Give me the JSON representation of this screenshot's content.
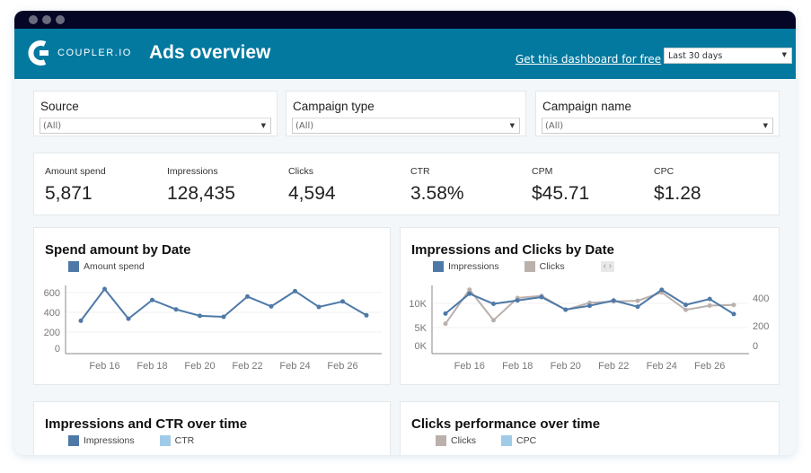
{
  "header": {
    "logo_text": "COUPLER.IO",
    "title": "Ads overview",
    "link": "Get this dashboard for free",
    "date_range": "Last 30 days"
  },
  "filters": [
    {
      "label": "Source",
      "value": "(All)"
    },
    {
      "label": "Campaign type",
      "value": "(All)"
    },
    {
      "label": "Campaign name",
      "value": "(All)"
    }
  ],
  "kpis": [
    {
      "label": "Amount spend",
      "value": "5,871"
    },
    {
      "label": "Impressions",
      "value": "128,435"
    },
    {
      "label": "Clicks",
      "value": "4,594"
    },
    {
      "label": "CTR",
      "value": "3.58%"
    },
    {
      "label": "CPM",
      "value": "$45.71"
    },
    {
      "label": "CPC",
      "value": "$1.28"
    }
  ],
  "colors": {
    "header": "#0379a0",
    "titlebar": "#050525",
    "blue": "#4e79a7",
    "gray": "#bab0ac",
    "light_blue": "#a0cbe8"
  },
  "chart_data": [
    {
      "type": "line",
      "title": "Spend amount by Date",
      "x": [
        "Feb 15",
        "Feb 16",
        "Feb 17",
        "Feb 18",
        "Feb 19",
        "Feb 20",
        "Feb 21",
        "Feb 22",
        "Feb 23",
        "Feb 24",
        "Feb 25",
        "Feb 26",
        "Feb 27"
      ],
      "xticks": [
        "Feb 16",
        "Feb 18",
        "Feb 20",
        "Feb 22",
        "Feb 24",
        "Feb 26"
      ],
      "yticks": [
        "600",
        "400",
        "200",
        "0"
      ],
      "series": [
        {
          "name": "Amount spend",
          "values": [
            315,
            636,
            335,
            525,
            430,
            365,
            355,
            560,
            460,
            615,
            455,
            510,
            370
          ]
        }
      ]
    },
    {
      "type": "line",
      "title": "Impressions and Clicks by Date",
      "x": [
        "Feb 15",
        "Feb 16",
        "Feb 17",
        "Feb 18",
        "Feb 19",
        "Feb 20",
        "Feb 21",
        "Feb 22",
        "Feb 23",
        "Feb 24",
        "Feb 25",
        "Feb 26",
        "Feb 27"
      ],
      "xticks": [
        "Feb 16",
        "Feb 18",
        "Feb 20",
        "Feb 22",
        "Feb 24",
        "Feb 26"
      ],
      "yticks_left": [
        "10K",
        "5K",
        "0K"
      ],
      "yticks_right": [
        "400",
        "200",
        "0"
      ],
      "series": [
        {
          "name": "Impressions",
          "axis": "left",
          "values": [
            7900,
            12000,
            9900,
            10600,
            11300,
            8700,
            9500,
            10600,
            9300,
            12800,
            9700,
            10900,
            7800
          ]
        },
        {
          "name": "Clicks",
          "axis": "right",
          "values": [
            215,
            460,
            240,
            400,
            415,
            315,
            365,
            375,
            380,
            440,
            315,
            345,
            350
          ]
        }
      ]
    },
    {
      "type": "line",
      "title": "Impressions and CTR over time",
      "series": [
        {
          "name": "Impressions"
        },
        {
          "name": "CTR"
        }
      ]
    },
    {
      "type": "line",
      "title": "Clicks performance over time",
      "series": [
        {
          "name": "Clicks"
        },
        {
          "name": "CPC"
        }
      ]
    }
  ]
}
